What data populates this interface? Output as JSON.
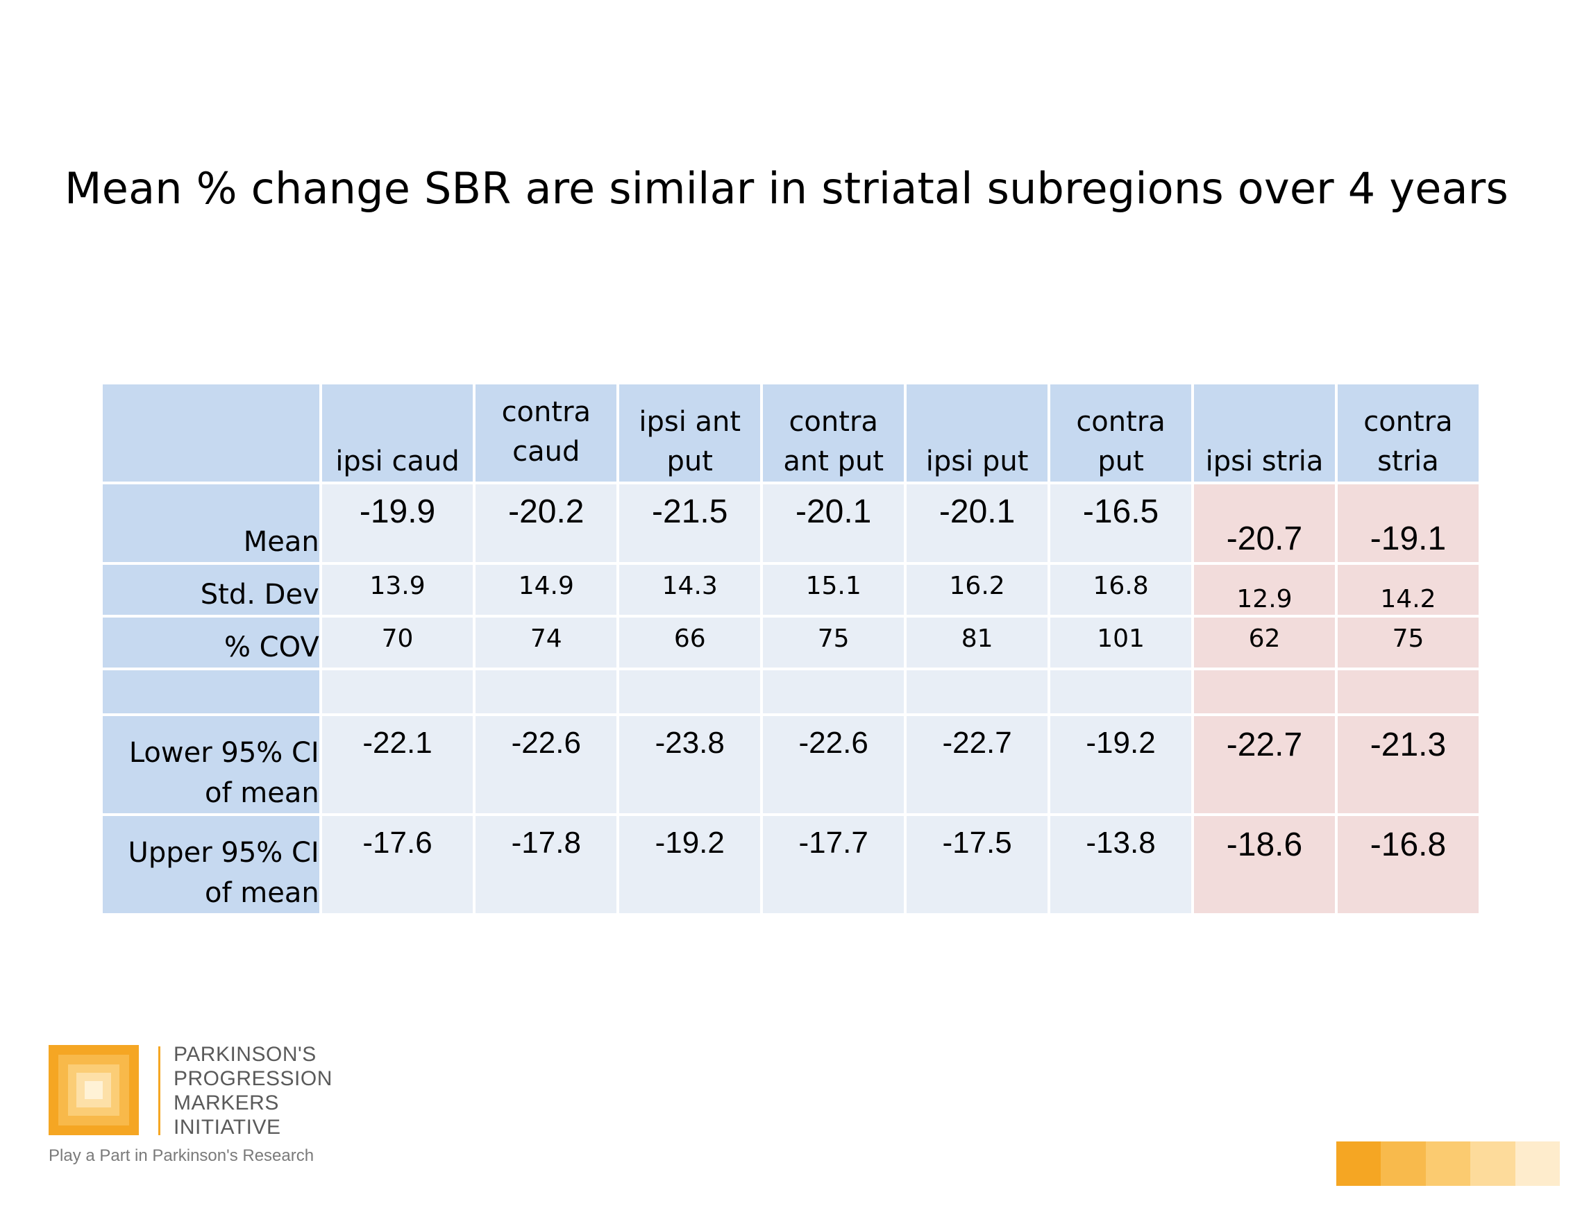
{
  "title": "Mean % change SBR are similar in striatal subregions over 4 years",
  "table": {
    "columns": [
      "ipsi caud",
      "contra caud",
      "ipsi ant put",
      "contra ant put",
      "ipsi put",
      "contra put",
      "ipsi stria",
      "contra stria"
    ],
    "rows": [
      {
        "label": "Mean",
        "values": [
          "-19.9",
          "-20.2",
          "-21.5",
          "-20.1",
          "-20.1",
          "-16.5",
          "-20.7",
          "-19.1"
        ]
      },
      {
        "label": "Std. Dev",
        "values": [
          "13.9",
          "14.9",
          "14.3",
          "15.1",
          "16.2",
          "16.8",
          "12.9",
          "14.2"
        ]
      },
      {
        "label": "% COV",
        "values": [
          "70",
          "74",
          "66",
          "75",
          "81",
          "101",
          "62",
          "75"
        ]
      },
      {
        "label": "Lower 95% CI of mean",
        "values": [
          "-22.1",
          "-22.6",
          "-23.8",
          "-22.6",
          "-22.7",
          "-19.2",
          "-22.7",
          "-21.3"
        ]
      },
      {
        "label": "Upper 95% CI of mean",
        "values": [
          "-17.6",
          "-17.8",
          "-19.2",
          "-17.7",
          "-17.5",
          "-13.8",
          "-18.6",
          "-16.8"
        ]
      }
    ]
  },
  "colors": {
    "header_blue": "#c6d9f0",
    "cell_light": "#e8eef6",
    "highlight_pink": "#f2dcdb",
    "brand_orange": "#f5a623"
  },
  "footer": {
    "logo_line1": "PARKINSON'S",
    "logo_line2": "PROGRESSION",
    "logo_line3": "MARKERS",
    "logo_line4": "INITIATIVE",
    "tagline": "Play a Part in Parkinson's Research",
    "logo_icon": "nested-squares-logo-icon"
  }
}
